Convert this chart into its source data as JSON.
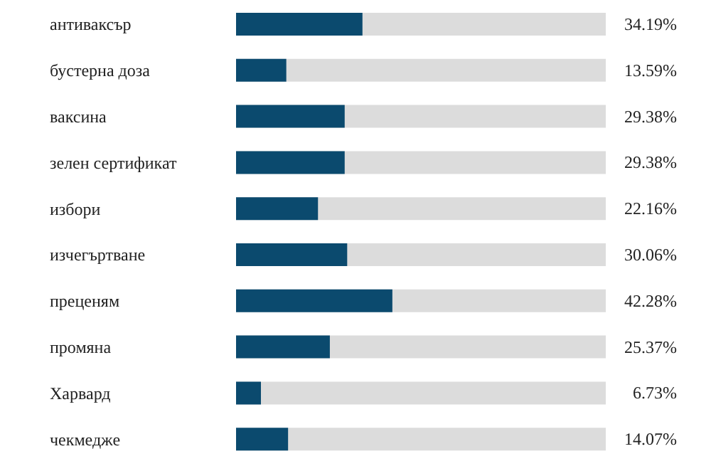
{
  "chart_data": {
    "type": "bar",
    "orientation": "horizontal",
    "categories": [
      "антиваксър",
      "бустерна доза",
      "ваксина",
      "зелен сертификат",
      "избори",
      "изчегъртване",
      "преценям",
      "промяна",
      "Харвард",
      "чекмедже"
    ],
    "values": [
      34.19,
      13.59,
      29.38,
      29.38,
      22.16,
      30.06,
      42.28,
      25.37,
      6.73,
      14.07
    ],
    "value_labels": [
      "34.19%",
      "13.59%",
      "29.38%",
      "29.38%",
      "22.16%",
      "30.06%",
      "42.28%",
      "25.37%",
      "6.73%",
      "14.07%"
    ],
    "color": "#0b4a6e",
    "xlim": [
      0,
      100
    ],
    "tick_labels": "y",
    "grid": false,
    "legend": false
  }
}
